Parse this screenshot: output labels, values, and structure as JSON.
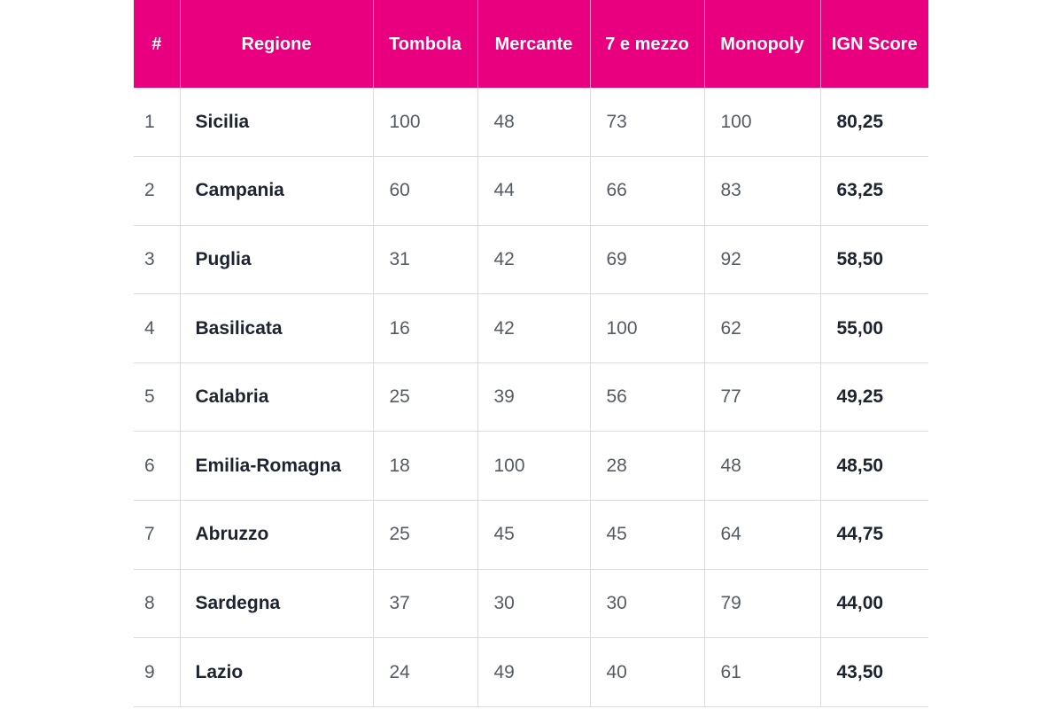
{
  "table": {
    "headers": [
      "#",
      "Regione",
      "Tombola",
      "Mercante",
      "7 e mezzo",
      "Monopoly",
      "IGN Score"
    ],
    "rows": [
      [
        "1",
        "Sicilia",
        "100",
        "48",
        "73",
        "100",
        "80,25"
      ],
      [
        "2",
        "Campania",
        "60",
        "44",
        "66",
        "83",
        "63,25"
      ],
      [
        "3",
        "Puglia",
        "31",
        "42",
        "69",
        "92",
        "58,50"
      ],
      [
        "4",
        "Basilicata",
        "16",
        "42",
        "100",
        "62",
        "55,00"
      ],
      [
        "5",
        "Calabria",
        "25",
        "39",
        "56",
        "77",
        "49,25"
      ],
      [
        "6",
        "Emilia-Romagna",
        "18",
        "100",
        "28",
        "48",
        "48,50"
      ],
      [
        "7",
        "Abruzzo",
        "25",
        "45",
        "45",
        "64",
        "44,75"
      ],
      [
        "8",
        "Sardegna",
        "37",
        "30",
        "30",
        "79",
        "44,00"
      ],
      [
        "9",
        "Lazio",
        "24",
        "49",
        "40",
        "61",
        "43,50"
      ]
    ]
  },
  "colors": {
    "header_bg": "#e8007f",
    "header_text": "#ffffff",
    "bold_text": "#1c2430",
    "body_text": "#555b63",
    "grid_line": "#dcdcdc"
  }
}
